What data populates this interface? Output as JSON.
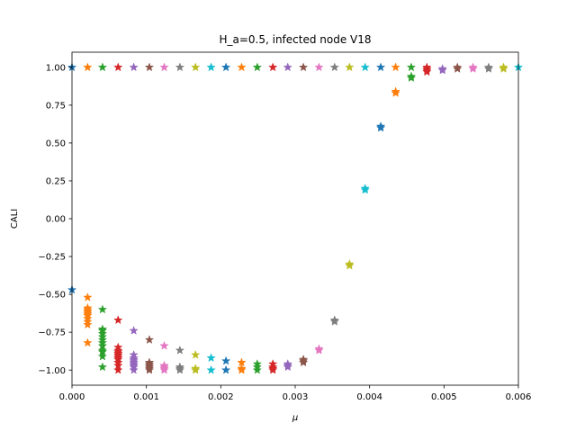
{
  "chart_data": {
    "type": "scatter",
    "title": "H_a=0.5, infected node V18",
    "xlabel": "μ",
    "ylabel": "CALI",
    "xlim": [
      0,
      0.006
    ],
    "ylim": [
      -1.1,
      1.1
    ],
    "xticks": [
      0,
      0.001,
      0.002,
      0.003,
      0.004,
      0.005,
      0.006
    ],
    "xtick_labels": [
      "0.000",
      "0.001",
      "0.002",
      "0.003",
      "0.004",
      "0.005",
      "0.006"
    ],
    "yticks": [
      1.0,
      0.75,
      0.5,
      0.25,
      0.0,
      -0.25,
      -0.5,
      -0.75,
      -1.0
    ],
    "ytick_labels": [
      "1.00",
      "0.75",
      "0.50",
      "0.25",
      "0.00",
      "−0.25",
      "−0.50",
      "−0.75",
      "−1.00"
    ],
    "grid": false,
    "marker": "star",
    "palette": [
      "#1f77b4",
      "#ff7f0e",
      "#2ca02c",
      "#d62728",
      "#9467bd",
      "#8c564b",
      "#e377c2",
      "#7f7f7f",
      "#bcbd22",
      "#17becf"
    ],
    "series": [
      {
        "x": 0.0,
        "y": [
          1.0,
          -0.47
        ]
      },
      {
        "x": 0.00021,
        "y": [
          1.0,
          -0.52,
          -0.59,
          -0.6,
          -0.61,
          -0.62,
          -0.63,
          -0.64,
          -0.66,
          -0.68,
          -0.7,
          -0.82
        ]
      },
      {
        "x": 0.00041,
        "y": [
          1.0,
          -0.6,
          -0.73,
          -0.74,
          -0.76,
          -0.78,
          -0.8,
          -0.82,
          -0.84,
          -0.87,
          -0.88,
          -0.91,
          -0.98
        ]
      },
      {
        "x": 0.00062,
        "y": [
          1.0,
          -0.67,
          -0.85,
          -0.87,
          -0.88,
          -0.89,
          -0.9,
          -0.91,
          -0.92,
          -0.93,
          -0.95,
          -0.97,
          -1.0
        ]
      },
      {
        "x": 0.00083,
        "y": [
          1.0,
          -0.74,
          -0.9,
          -0.92,
          -0.93,
          -0.94,
          -0.95,
          -0.96,
          -0.97,
          -0.98,
          -1.0
        ]
      },
      {
        "x": 0.00104,
        "y": [
          1.0,
          -0.8,
          -0.95,
          -0.96,
          -0.97,
          -0.98,
          -0.99,
          -1.0
        ]
      },
      {
        "x": 0.00124,
        "y": [
          1.0,
          -0.84,
          -0.97,
          -0.98,
          -0.99,
          -1.0
        ]
      },
      {
        "x": 0.00145,
        "y": [
          1.0,
          -0.87,
          -0.98,
          -0.99,
          -1.0
        ]
      },
      {
        "x": 0.00166,
        "y": [
          1.0,
          -0.9,
          -0.99,
          -1.0
        ]
      },
      {
        "x": 0.00187,
        "y": [
          1.0,
          -0.92,
          -1.0
        ]
      },
      {
        "x": 0.00207,
        "y": [
          1.0,
          -0.94,
          -1.0
        ]
      },
      {
        "x": 0.00228,
        "y": [
          1.0,
          -0.95,
          -0.99,
          -1.0
        ]
      },
      {
        "x": 0.00249,
        "y": [
          1.0,
          -0.96,
          -0.98,
          -1.0
        ]
      },
      {
        "x": 0.0027,
        "y": [
          1.0,
          -0.96,
          -0.98,
          -0.99,
          -1.0
        ]
      },
      {
        "x": 0.0029,
        "y": [
          1.0,
          -0.96,
          -0.97,
          -0.98
        ]
      },
      {
        "x": 0.00311,
        "y": [
          1.0,
          -0.93,
          -0.94,
          -0.95
        ]
      },
      {
        "x": 0.00332,
        "y": [
          1.0,
          -0.86,
          -0.87
        ]
      },
      {
        "x": 0.00353,
        "y": [
          1.0,
          -0.67,
          -0.68
        ]
      },
      {
        "x": 0.00373,
        "y": [
          1.0,
          -0.3,
          -0.31
        ]
      },
      {
        "x": 0.00394,
        "y": [
          1.0,
          0.19,
          0.2
        ]
      },
      {
        "x": 0.00415,
        "y": [
          1.0,
          0.6,
          0.61
        ]
      },
      {
        "x": 0.00435,
        "y": [
          1.0,
          0.83,
          0.84
        ]
      },
      {
        "x": 0.00456,
        "y": [
          1.0,
          0.93,
          0.94
        ]
      },
      {
        "x": 0.00477,
        "y": [
          1.0,
          0.97,
          0.98,
          0.99
        ]
      },
      {
        "x": 0.00498,
        "y": [
          0.99,
          0.98
        ]
      },
      {
        "x": 0.00518,
        "y": [
          0.99,
          1.0
        ]
      },
      {
        "x": 0.00539,
        "y": [
          0.99,
          1.0
        ]
      },
      {
        "x": 0.0056,
        "y": [
          1.0,
          0.99
        ]
      },
      {
        "x": 0.0058,
        "y": [
          1.0,
          0.99
        ]
      },
      {
        "x": 0.006,
        "y": [
          1.0
        ]
      }
    ]
  }
}
